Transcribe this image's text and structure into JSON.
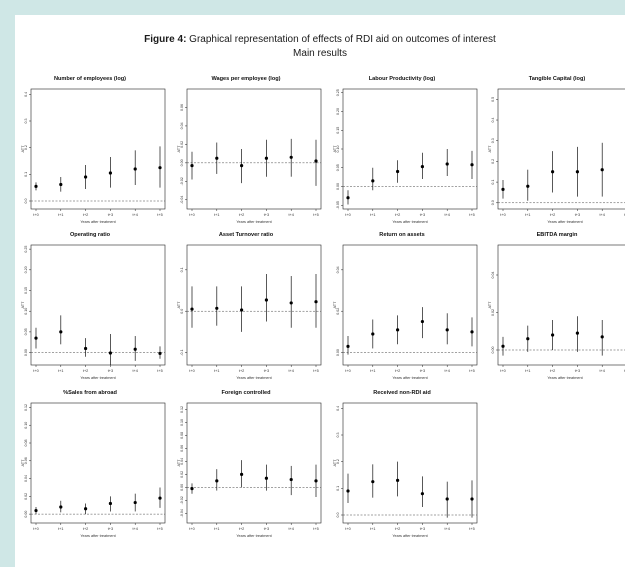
{
  "figure": {
    "label": "Figure 4",
    "title": "Graphical representation of effects of RDI aid on outcomes of interest",
    "subtitle": "Main results"
  },
  "chart_data": [
    {
      "type": "scatter",
      "title": "Number of employees (log)",
      "ylabel": "ATT",
      "xlabel": "Years after treatment",
      "categories": [
        "t+0",
        "t+1",
        "t+2",
        "t+3",
        "t+4",
        "t+5"
      ],
      "ylim": [
        -0.03,
        0.42
      ],
      "yticks": [
        "0.0",
        "0.1",
        "0.2",
        "0.3",
        "0.4"
      ],
      "ytick_values": [
        0,
        0.1,
        0.2,
        0.3,
        0.4
      ],
      "values": [
        0.055,
        0.062,
        0.09,
        0.105,
        0.12,
        0.125
      ],
      "ci_low": [
        0.04,
        0.035,
        0.045,
        0.05,
        0.06,
        0.05
      ],
      "ci_high": [
        0.07,
        0.09,
        0.135,
        0.165,
        0.19,
        0.205
      ]
    },
    {
      "type": "scatter",
      "title": "Wages per employee (log)",
      "ylabel": "ATT",
      "xlabel": "Years after treatment",
      "categories": [
        "t+0",
        "t+1",
        "t+2",
        "t+3",
        "t+4",
        "t+5"
      ],
      "ylim": [
        -0.05,
        0.08
      ],
      "yticks": [
        "-0.04",
        "-0.02",
        "0.00",
        "0.02",
        "0.04",
        "0.06"
      ],
      "ytick_values": [
        -0.04,
        -0.02,
        0,
        0.02,
        0.04,
        0.06
      ],
      "values": [
        -0.003,
        0.005,
        -0.003,
        0.005,
        0.006,
        0.002
      ],
      "ci_low": [
        -0.018,
        -0.012,
        -0.022,
        -0.015,
        -0.015,
        -0.025
      ],
      "ci_high": [
        0.012,
        0.022,
        0.015,
        0.025,
        0.026,
        0.025
      ]
    },
    {
      "type": "scatter",
      "title": "Labour Productivity (log)",
      "ylabel": "ATT",
      "xlabel": "Years after treatment",
      "categories": [
        "t+0",
        "t+1",
        "t+2",
        "t+3",
        "t+4",
        "t+5"
      ],
      "ylim": [
        -0.06,
        0.26
      ],
      "yticks": [
        "-0.05",
        "0.00",
        "0.05",
        "0.10",
        "0.15",
        "0.20",
        "0.25"
      ],
      "ytick_values": [
        -0.05,
        0,
        0.05,
        0.1,
        0.15,
        0.2,
        0.25
      ],
      "values": [
        -0.03,
        0.015,
        0.04,
        0.053,
        0.06,
        0.058
      ],
      "ci_low": [
        -0.048,
        -0.01,
        0.01,
        0.02,
        0.028,
        0.02
      ],
      "ci_high": [
        -0.01,
        0.05,
        0.07,
        0.09,
        0.1,
        0.095
      ]
    },
    {
      "type": "scatter",
      "title": "Tangible Capital (log)",
      "ylabel": "ATT",
      "xlabel": "Years after treatment",
      "categories": [
        "t+0",
        "t+1",
        "t+2",
        "t+3",
        "t+4",
        "t+5"
      ],
      "ylim": [
        -0.03,
        0.55
      ],
      "yticks": [
        "0.0",
        "0.1",
        "0.2",
        "0.3",
        "0.4",
        "0.5"
      ],
      "ytick_values": [
        0,
        0.1,
        0.2,
        0.3,
        0.4,
        0.5
      ],
      "values": [
        0.065,
        0.08,
        0.15,
        0.15,
        0.16,
        0.15
      ],
      "ci_low": [
        0.02,
        0.01,
        0.05,
        0.03,
        0.03,
        0.0
      ],
      "ci_high": [
        0.11,
        0.16,
        0.25,
        0.27,
        0.29,
        0.31
      ]
    },
    {
      "type": "scatter",
      "title": "Operating ratio",
      "ylabel": "ATT",
      "xlabel": "Years after treatment",
      "categories": [
        "t+0",
        "t+1",
        "t+2",
        "t+3",
        "t+4",
        "t+5"
      ],
      "ylim": [
        -0.03,
        0.26
      ],
      "yticks": [
        "0.00",
        "0.05",
        "0.10",
        "0.15",
        "0.20",
        "0.25"
      ],
      "ytick_values": [
        0,
        0.05,
        0.1,
        0.15,
        0.2,
        0.25
      ],
      "values": [
        0.035,
        0.05,
        0.01,
        -0.001,
        0.008,
        -0.002
      ],
      "ci_low": [
        0.01,
        0.02,
        -0.01,
        -0.03,
        -0.02,
        -0.015
      ],
      "ci_high": [
        0.06,
        0.09,
        0.035,
        0.045,
        0.04,
        0.015
      ]
    },
    {
      "type": "scatter",
      "title": "Asset Turnover ratio",
      "ylabel": "ATT",
      "xlabel": "Years after treatment",
      "categories": [
        "t+0",
        "t+1",
        "t+2",
        "t+3",
        "t+4",
        "t+5"
      ],
      "ylim": [
        -0.13,
        0.16
      ],
      "yticks": [
        "-0.1",
        "0.0",
        "0.1"
      ],
      "ytick_values": [
        -0.1,
        0,
        0.1
      ],
      "values": [
        0.005,
        0.007,
        0.003,
        0.027,
        0.02,
        0.023
      ],
      "ci_low": [
        -0.04,
        -0.035,
        -0.05,
        -0.025,
        -0.04,
        -0.04
      ],
      "ci_high": [
        0.06,
        0.06,
        0.06,
        0.09,
        0.085,
        0.09
      ]
    },
    {
      "type": "scatter",
      "title": "Return on assets",
      "ylabel": "ATT",
      "xlabel": "Years after treatment",
      "categories": [
        "t+0",
        "t+1",
        "t+2",
        "t+3",
        "t+4",
        "t+5"
      ],
      "ylim": [
        -0.006,
        0.052
      ],
      "yticks": [
        "0.00",
        "0.02",
        "0.04"
      ],
      "ytick_values": [
        0,
        0.02,
        0.04
      ],
      "values": [
        0.003,
        0.009,
        0.011,
        0.015,
        0.011,
        0.01
      ],
      "ci_low": [
        -0.001,
        0.002,
        0.004,
        0.007,
        0.004,
        0.003
      ],
      "ci_high": [
        0.008,
        0.016,
        0.018,
        0.022,
        0.019,
        0.017
      ]
    },
    {
      "type": "scatter",
      "title": "EBITDA margin",
      "ylabel": "ATT",
      "xlabel": "Years after treatment",
      "categories": [
        "t+0",
        "t+1",
        "t+2",
        "t+3",
        "t+4",
        "t+5"
      ],
      "ylim": [
        -0.008,
        0.056
      ],
      "yticks": [
        "0.00",
        "0.02",
        "0.04"
      ],
      "ytick_values": [
        0,
        0.02,
        0.04
      ],
      "values": [
        0.002,
        0.006,
        0.008,
        0.009,
        0.007,
        0.011
      ],
      "ci_low": [
        -0.003,
        -0.001,
        0.0,
        -0.001,
        -0.003,
        0.001
      ],
      "ci_high": [
        0.007,
        0.013,
        0.016,
        0.018,
        0.016,
        0.02
      ]
    },
    {
      "type": "scatter",
      "title": "%Sales from abroad",
      "ylabel": "ATT",
      "xlabel": "Years after treatment",
      "categories": [
        "t+0",
        "t+1",
        "t+2",
        "t+3",
        "t+4",
        "t+5"
      ],
      "ylim": [
        -0.01,
        0.125
      ],
      "yticks": [
        "0.00",
        "0.02",
        "0.04",
        "0.06",
        "0.08",
        "0.10",
        "0.12"
      ],
      "ytick_values": [
        0,
        0.02,
        0.04,
        0.06,
        0.08,
        0.1,
        0.12
      ],
      "values": [
        0.004,
        0.008,
        0.006,
        0.012,
        0.013,
        0.018
      ],
      "ci_low": [
        0.0,
        0.002,
        0.0,
        0.003,
        0.003,
        0.007
      ],
      "ci_high": [
        0.008,
        0.015,
        0.012,
        0.02,
        0.023,
        0.03
      ]
    },
    {
      "type": "scatter",
      "title": "Foreign controlled",
      "ylabel": "ATT",
      "xlabel": "Years after treatment",
      "categories": [
        "t+0",
        "t+1",
        "t+2",
        "t+3",
        "t+4",
        "t+5"
      ],
      "ylim": [
        -0.055,
        0.13
      ],
      "yticks": [
        "-0.04",
        "-0.02",
        "0.00",
        "0.02",
        "0.04",
        "0.06",
        "0.08",
        "0.10",
        "0.12"
      ],
      "ytick_values": [
        -0.04,
        -0.02,
        0,
        0.02,
        0.04,
        0.06,
        0.08,
        0.1,
        0.12
      ],
      "values": [
        -0.002,
        0.01,
        0.02,
        0.014,
        0.012,
        0.01
      ],
      "ci_low": [
        -0.01,
        -0.005,
        0.0,
        -0.005,
        -0.012,
        -0.015
      ],
      "ci_high": [
        0.006,
        0.028,
        0.042,
        0.035,
        0.033,
        0.035
      ]
    },
    {
      "type": "scatter",
      "title": "Received non-RDI aid",
      "ylabel": "ATT",
      "xlabel": "Years after treatment",
      "categories": [
        "t+0",
        "t+1",
        "t+2",
        "t+3",
        "t+4",
        "t+5"
      ],
      "ylim": [
        -0.03,
        0.42
      ],
      "yticks": [
        "0.0",
        "0.1",
        "0.2",
        "0.3",
        "0.4"
      ],
      "ytick_values": [
        0,
        0.1,
        0.2,
        0.3,
        0.4
      ],
      "values": [
        0.09,
        0.125,
        0.13,
        0.08,
        0.06,
        0.06
      ],
      "ci_low": [
        0.045,
        0.065,
        0.07,
        0.03,
        -0.01,
        -0.01
      ],
      "ci_high": [
        0.155,
        0.19,
        0.2,
        0.145,
        0.125,
        0.13
      ]
    }
  ]
}
